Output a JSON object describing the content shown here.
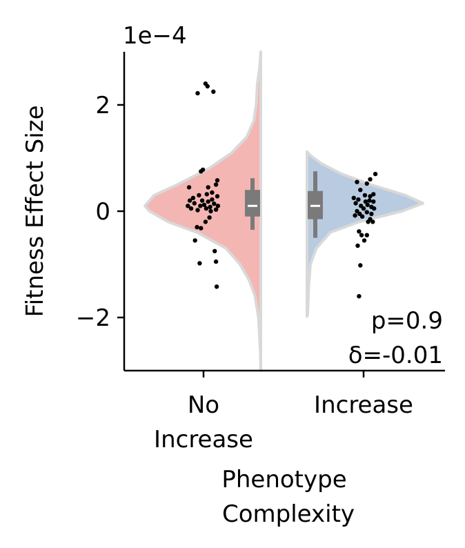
{
  "chart_data": {
    "type": "violin",
    "ylabel": "Fitness Effect Size",
    "xlabel_lines": [
      "Phenotype",
      "Complexity"
    ],
    "y_offset_text": "1e−4",
    "ylim": [
      -3,
      3
    ],
    "yticks": [
      {
        "value": 2,
        "label": "2"
      },
      {
        "value": 0,
        "label": "0"
      },
      {
        "value": -2,
        "label": "−2"
      }
    ],
    "categories": [
      {
        "key": "no_increase",
        "label_lines": [
          "No",
          "Increase"
        ]
      },
      {
        "key": "increase",
        "label_lines": [
          "Increase"
        ]
      }
    ],
    "series": [
      {
        "category": "no_increase",
        "side": "left",
        "color": "#f4b6b2",
        "box": {
          "whisker_low": -0.35,
          "q1": -0.1,
          "median": 0.1,
          "q3": 0.4,
          "whisker_high": 0.62
        },
        "density": [
          [
            -3.0,
            0.0
          ],
          [
            -2.6,
            0.005
          ],
          [
            -2.0,
            0.02
          ],
          [
            -1.6,
            0.05
          ],
          [
            -1.3,
            0.1
          ],
          [
            -1.0,
            0.18
          ],
          [
            -0.7,
            0.3
          ],
          [
            -0.4,
            0.55
          ],
          [
            -0.2,
            0.8
          ],
          [
            0.0,
            0.96
          ],
          [
            0.1,
            1.0
          ],
          [
            0.3,
            0.92
          ],
          [
            0.5,
            0.72
          ],
          [
            0.8,
            0.45
          ],
          [
            1.1,
            0.25
          ],
          [
            1.4,
            0.12
          ],
          [
            1.7,
            0.06
          ],
          [
            2.0,
            0.04
          ],
          [
            2.4,
            0.03
          ],
          [
            2.7,
            0.01
          ],
          [
            3.0,
            0.0
          ]
        ],
        "points": [
          [
            0.02,
            2.4
          ],
          [
            -0.1,
            2.22
          ],
          [
            0.14,
            2.25
          ],
          [
            0.05,
            2.35
          ],
          [
            -0.05,
            0.75
          ],
          [
            -0.02,
            0.78
          ],
          [
            0.2,
            0.58
          ],
          [
            0.18,
            0.5
          ],
          [
            -0.23,
            0.45
          ],
          [
            0.06,
            0.45
          ],
          [
            0.12,
            0.35
          ],
          [
            -0.25,
            0.1
          ],
          [
            -0.2,
            0.05
          ],
          [
            -0.15,
            0.15
          ],
          [
            -0.1,
            0.02
          ],
          [
            -0.06,
            0.1
          ],
          [
            -0.03,
            0.2
          ],
          [
            0.0,
            0.12
          ],
          [
            0.03,
            0.05
          ],
          [
            0.06,
            0.18
          ],
          [
            0.09,
            0.08
          ],
          [
            0.12,
            0.22
          ],
          [
            0.15,
            0.14
          ],
          [
            0.18,
            0.03
          ],
          [
            0.2,
            0.28
          ],
          [
            -0.17,
            0.25
          ],
          [
            -0.08,
            0.3
          ],
          [
            0.04,
            0.32
          ],
          [
            0.1,
            0.0
          ],
          [
            0.21,
            0.1
          ],
          [
            -0.11,
            -0.3
          ],
          [
            -0.05,
            -0.32
          ],
          [
            0.02,
            -0.2
          ],
          [
            0.08,
            -0.12
          ],
          [
            -0.14,
            -0.55
          ],
          [
            0.16,
            -0.75
          ],
          [
            -0.07,
            -0.98
          ],
          [
            0.18,
            -0.95
          ],
          [
            0.19,
            -1.42
          ],
          [
            -0.22,
            0.2
          ]
        ]
      },
      {
        "category": "increase",
        "side": "right",
        "color": "#b8cbe0",
        "box": {
          "whisker_low": -0.5,
          "q1": -0.15,
          "median": 0.1,
          "q3": 0.38,
          "whisker_high": 0.75
        },
        "density": [
          [
            -1.98,
            0.0
          ],
          [
            -1.95,
            0.005
          ],
          [
            -1.7,
            0.01
          ],
          [
            -1.4,
            0.015
          ],
          [
            -1.0,
            0.03
          ],
          [
            -0.7,
            0.08
          ],
          [
            -0.4,
            0.2
          ],
          [
            -0.2,
            0.45
          ],
          [
            0.0,
            0.82
          ],
          [
            0.15,
            1.0
          ],
          [
            0.3,
            0.85
          ],
          [
            0.5,
            0.55
          ],
          [
            0.7,
            0.3
          ],
          [
            0.9,
            0.12
          ],
          [
            1.05,
            0.03
          ],
          [
            1.12,
            0.0
          ]
        ],
        "points": [
          [
            -0.1,
            0.55
          ],
          [
            0.05,
            0.52
          ],
          [
            0.1,
            0.6
          ],
          [
            0.18,
            0.7
          ],
          [
            -0.05,
            0.4
          ],
          [
            0.02,
            0.3
          ],
          [
            0.1,
            0.28
          ],
          [
            0.15,
            0.32
          ],
          [
            -0.15,
            0.25
          ],
          [
            -0.12,
            0.15
          ],
          [
            -0.08,
            0.22
          ],
          [
            -0.04,
            0.1
          ],
          [
            0.0,
            0.05
          ],
          [
            0.03,
            0.18
          ],
          [
            0.06,
            0.12
          ],
          [
            0.09,
            0.2
          ],
          [
            0.12,
            0.08
          ],
          [
            0.15,
            0.18
          ],
          [
            -0.1,
            0.0
          ],
          [
            -0.06,
            -0.05
          ],
          [
            -0.02,
            -0.1
          ],
          [
            0.05,
            -0.02
          ],
          [
            0.1,
            -0.15
          ],
          [
            -0.13,
            -0.08
          ],
          [
            0.16,
            0.05
          ],
          [
            0.12,
            -0.05
          ],
          [
            0.07,
            -0.2
          ],
          [
            0.14,
            -0.2
          ],
          [
            -0.07,
            -0.38
          ],
          [
            -0.03,
            -0.45
          ],
          [
            0.01,
            -0.55
          ],
          [
            -0.09,
            -0.65
          ],
          [
            0.05,
            -0.45
          ],
          [
            -0.05,
            -1.02
          ],
          [
            -0.07,
            -1.6
          ]
        ]
      }
    ],
    "annotations": [
      "p=0.9",
      "δ=-0.01"
    ]
  }
}
